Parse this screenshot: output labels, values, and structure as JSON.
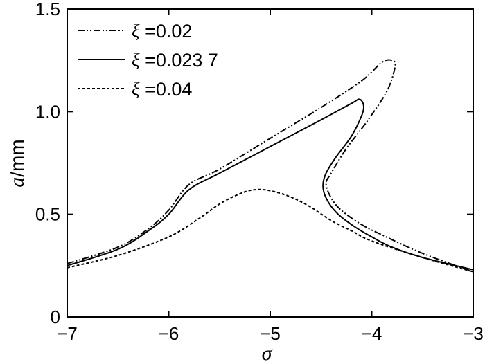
{
  "chart_data": {
    "type": "line",
    "xlabel": "σ",
    "ylabel_italic": "a",
    "ylabel_unit": "/mm",
    "xlim": [
      -7,
      -3
    ],
    "ylim": [
      0,
      1.5
    ],
    "xticks": [
      -7,
      -6,
      -5,
      -4,
      -3
    ],
    "yticks": [
      0,
      0.5,
      1.0,
      1.5
    ],
    "xtick_labels": [
      "−7",
      "−6",
      "−5",
      "−4",
      "−3"
    ],
    "ytick_labels": [
      "0",
      "0.5",
      "1.0",
      "1.5"
    ],
    "grid": false,
    "legend_position": "top-left",
    "series": [
      {
        "name": "ξ =0.02",
        "legend_symbol": "ξ",
        "legend_value": " =0.02",
        "style": "dash-dot-dot",
        "color": "#000000",
        "points": [
          [
            -7.0,
            0.26
          ],
          [
            -6.5,
            0.34
          ],
          [
            -6.2,
            0.43
          ],
          [
            -6.0,
            0.52
          ],
          [
            -5.8,
            0.645
          ],
          [
            -5.5,
            0.72
          ],
          [
            -5.0,
            0.87
          ],
          [
            -4.5,
            1.02
          ],
          [
            -4.1,
            1.15
          ],
          [
            -3.9,
            1.24
          ],
          [
            -3.8,
            1.25
          ],
          [
            -3.77,
            1.22
          ],
          [
            -3.85,
            1.1
          ],
          [
            -4.05,
            0.95
          ],
          [
            -4.25,
            0.82
          ],
          [
            -4.4,
            0.7
          ],
          [
            -4.45,
            0.65
          ],
          [
            -4.4,
            0.58
          ],
          [
            -4.3,
            0.52
          ],
          [
            -4.1,
            0.45
          ],
          [
            -3.9,
            0.4
          ],
          [
            -3.5,
            0.31
          ],
          [
            -3.0,
            0.22
          ]
        ]
      },
      {
        "name": "ξ =0.023 7",
        "legend_symbol": "ξ",
        "legend_value": " =0.023 7",
        "style": "solid",
        "color": "#000000",
        "points": [
          [
            -7.0,
            0.25
          ],
          [
            -6.5,
            0.33
          ],
          [
            -6.2,
            0.42
          ],
          [
            -6.0,
            0.5
          ],
          [
            -5.8,
            0.62
          ],
          [
            -5.5,
            0.7
          ],
          [
            -5.0,
            0.83
          ],
          [
            -4.5,
            0.96
          ],
          [
            -4.2,
            1.04
          ],
          [
            -4.12,
            1.06
          ],
          [
            -4.08,
            1.03
          ],
          [
            -4.1,
            0.98
          ],
          [
            -4.2,
            0.88
          ],
          [
            -4.35,
            0.78
          ],
          [
            -4.45,
            0.7
          ],
          [
            -4.48,
            0.64
          ],
          [
            -4.45,
            0.58
          ],
          [
            -4.35,
            0.51
          ],
          [
            -4.2,
            0.45
          ],
          [
            -4.0,
            0.39
          ],
          [
            -3.8,
            0.34
          ],
          [
            -3.5,
            0.29
          ],
          [
            -3.0,
            0.23
          ]
        ]
      },
      {
        "name": "ξ =0.04",
        "legend_symbol": "ξ",
        "legend_value": " =0.04",
        "style": "dashed",
        "color": "#000000",
        "points": [
          [
            -7.0,
            0.24
          ],
          [
            -6.5,
            0.3
          ],
          [
            -6.0,
            0.39
          ],
          [
            -5.7,
            0.48
          ],
          [
            -5.5,
            0.55
          ],
          [
            -5.3,
            0.6
          ],
          [
            -5.15,
            0.62
          ],
          [
            -5.0,
            0.615
          ],
          [
            -4.8,
            0.585
          ],
          [
            -4.6,
            0.535
          ],
          [
            -4.4,
            0.47
          ],
          [
            -4.2,
            0.42
          ],
          [
            -4.0,
            0.37
          ],
          [
            -3.5,
            0.29
          ],
          [
            -3.0,
            0.22
          ]
        ]
      }
    ]
  }
}
